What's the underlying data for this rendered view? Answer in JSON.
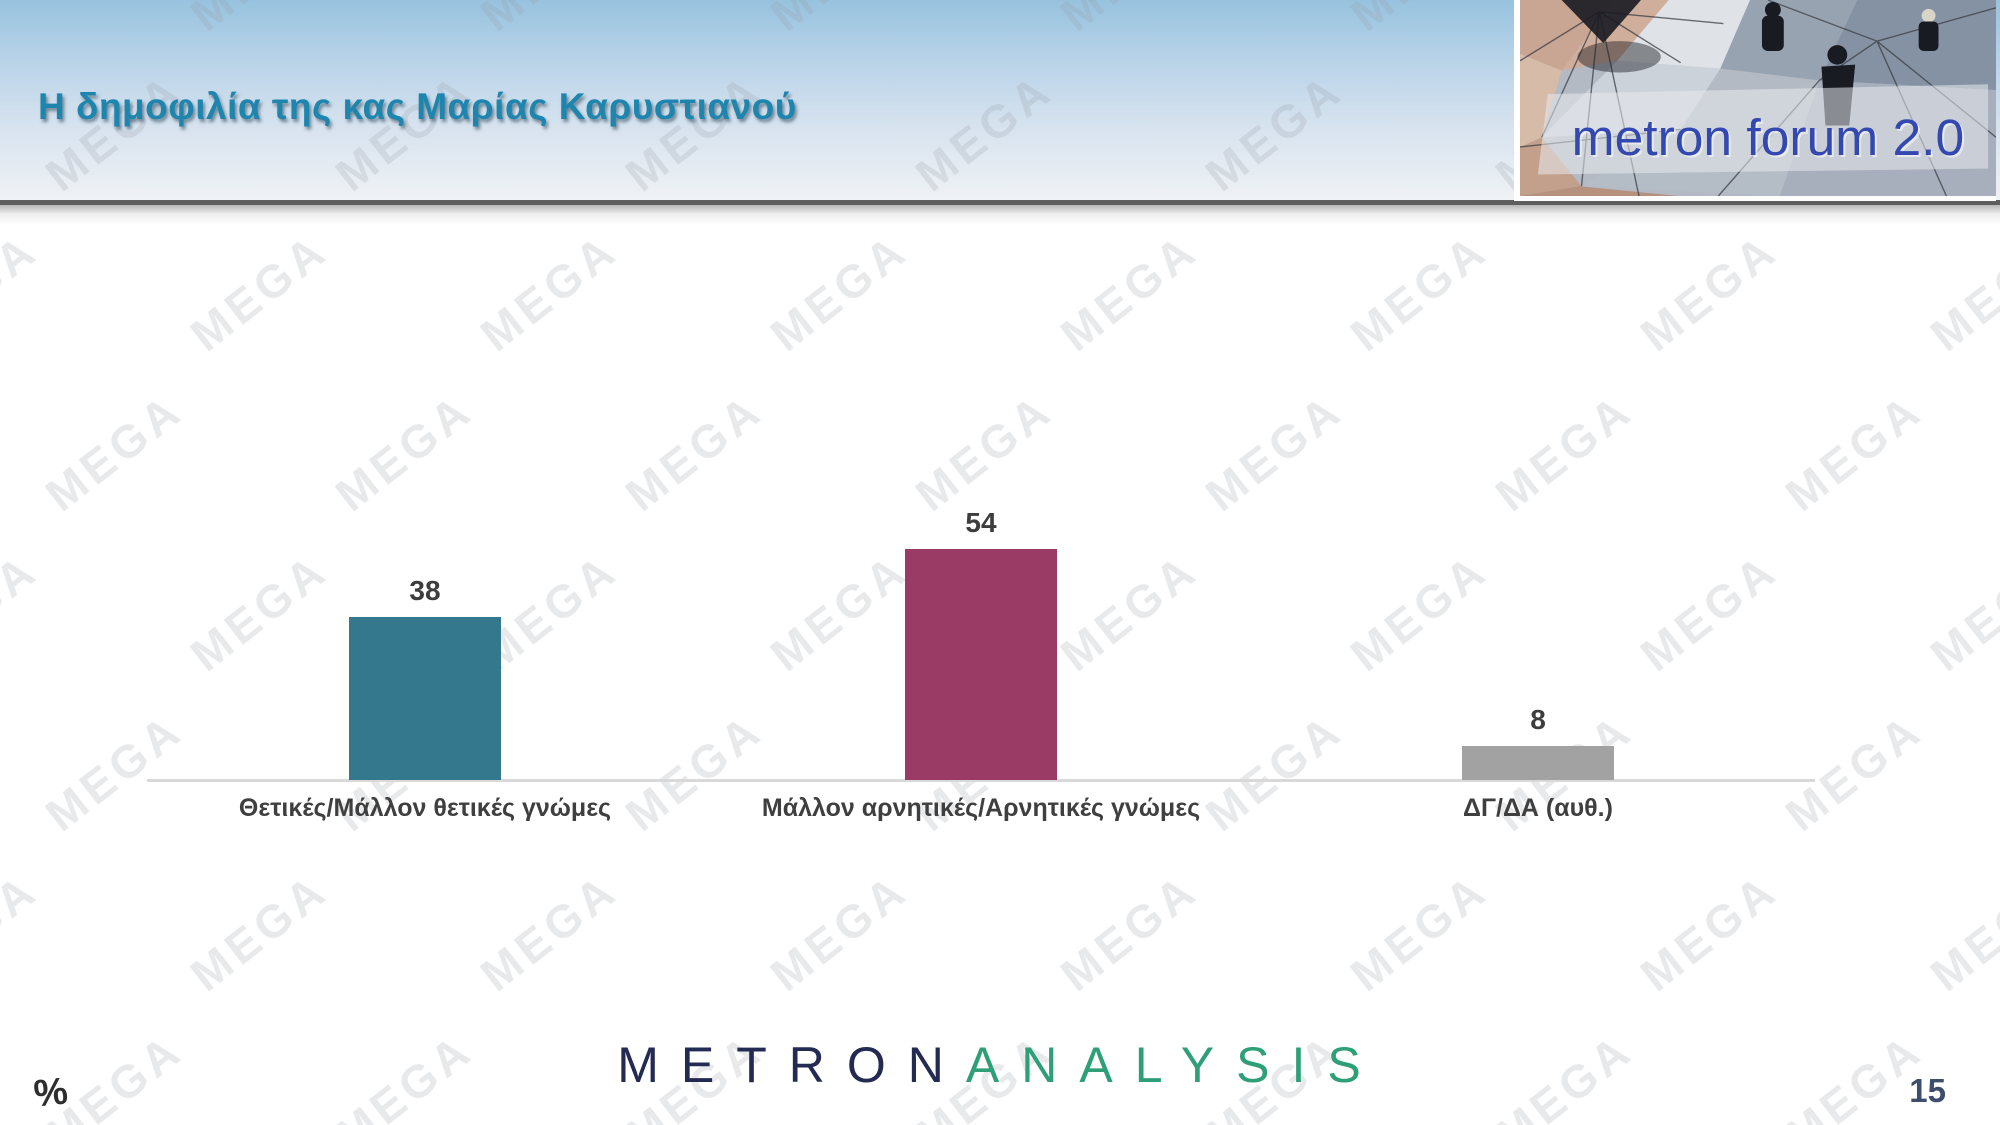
{
  "header": {
    "title": "Η δημοφιλία της κας Μαρίας Καρυστιανού",
    "logo_text": "metron forum 2.0"
  },
  "watermark": {
    "text": "MEGA"
  },
  "chart_data": {
    "type": "bar",
    "title": "Η δημοφιλία της κας Μαρίας Καρυστιανού",
    "categories": [
      "Θετικές/Μάλλον θετικές γνώμες",
      "Μάλλον αρνητικές/Αρνητικές γνώμες",
      "ΔΓ/ΔΑ (αυθ.)"
    ],
    "values": [
      38,
      54,
      8
    ],
    "value_labels": [
      "38",
      "54",
      "8"
    ],
    "bar_colors": [
      "#33788c",
      "#9a3b66",
      "#a2a2a2"
    ],
    "unit": "%",
    "xlabel": "",
    "ylabel": "%",
    "ylim": [
      0,
      60
    ],
    "grid": false,
    "legend": "none",
    "value_label_color": "#3d3d3d",
    "axis_line_color": "#d9d9d9"
  },
  "footer": {
    "percent_label": "%",
    "brand_metron": "METRON",
    "brand_analysis": "ANALYSIS",
    "page_number": "15"
  }
}
